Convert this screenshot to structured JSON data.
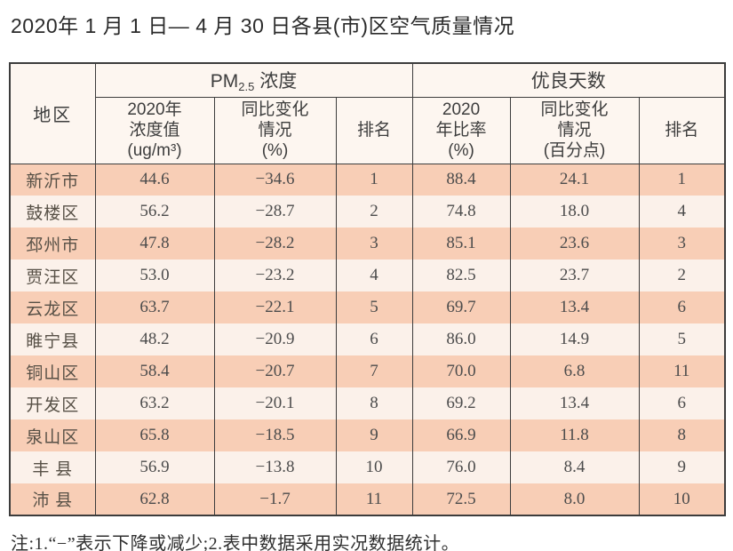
{
  "page": {
    "title": "2020年 1 月 1 日— 4 月 30 日各县(市)区空气质量情况",
    "note": "注:1.“−”表示下降或减少;2.表中数据采用实况数据统计。"
  },
  "colors": {
    "row_stripe": "#f8ceb6",
    "row_light": "#fbf1ea",
    "header_bg": "#fdf6f0",
    "border": "#3c3c3c",
    "text": "#4c4c4c"
  },
  "table": {
    "header": {
      "region": "地区",
      "pm25_group": {
        "pm": "PM",
        "sub": "2.5",
        "rest": " 浓度"
      },
      "good_days_group": "优良天数",
      "pm_value_lines": [
        "2020年",
        "浓度值",
        "(ug/m³)"
      ],
      "pm_change_lines": [
        "同比变化",
        "情况",
        "(%)"
      ],
      "pm_rank": "排名",
      "days_ratio_lines": [
        "2020",
        "年比率",
        "(%)"
      ],
      "days_change_lines": [
        "同比变化",
        "情况",
        "(百分点)"
      ],
      "days_rank": "排名"
    },
    "rows": [
      {
        "region": "新沂市",
        "pm_value": "44.6",
        "pm_change": "−34.6",
        "pm_rank": "1",
        "days_ratio": "88.4",
        "days_change": "24.1",
        "days_rank": "1"
      },
      {
        "region": "鼓楼区",
        "pm_value": "56.2",
        "pm_change": "−28.7",
        "pm_rank": "2",
        "days_ratio": "74.8",
        "days_change": "18.0",
        "days_rank": "4"
      },
      {
        "region": "邳州市",
        "pm_value": "47.8",
        "pm_change": "−28.2",
        "pm_rank": "3",
        "days_ratio": "85.1",
        "days_change": "23.6",
        "days_rank": "3"
      },
      {
        "region": "贾汪区",
        "pm_value": "53.0",
        "pm_change": "−23.2",
        "pm_rank": "4",
        "days_ratio": "82.5",
        "days_change": "23.7",
        "days_rank": "2"
      },
      {
        "region": "云龙区",
        "pm_value": "63.7",
        "pm_change": "−22.1",
        "pm_rank": "5",
        "days_ratio": "69.7",
        "days_change": "13.4",
        "days_rank": "6"
      },
      {
        "region": "睢宁县",
        "pm_value": "48.2",
        "pm_change": "−20.9",
        "pm_rank": "6",
        "days_ratio": "86.0",
        "days_change": "14.9",
        "days_rank": "5"
      },
      {
        "region": "铜山区",
        "pm_value": "58.4",
        "pm_change": "−20.7",
        "pm_rank": "7",
        "days_ratio": "70.0",
        "days_change": "6.8",
        "days_rank": "11"
      },
      {
        "region": "开发区",
        "pm_value": "63.2",
        "pm_change": "−20.1",
        "pm_rank": "8",
        "days_ratio": "69.2",
        "days_change": "13.4",
        "days_rank": "6"
      },
      {
        "region": "泉山区",
        "pm_value": "65.8",
        "pm_change": "−18.5",
        "pm_rank": "9",
        "days_ratio": "66.9",
        "days_change": "11.8",
        "days_rank": "8"
      },
      {
        "region": "丰 县",
        "pm_value": "56.9",
        "pm_change": "−13.8",
        "pm_rank": "10",
        "days_ratio": "76.0",
        "days_change": "8.4",
        "days_rank": "9"
      },
      {
        "region": "沛 县",
        "pm_value": "62.8",
        "pm_change": "−1.7",
        "pm_rank": "11",
        "days_ratio": "72.5",
        "days_change": "8.0",
        "days_rank": "10"
      }
    ]
  }
}
